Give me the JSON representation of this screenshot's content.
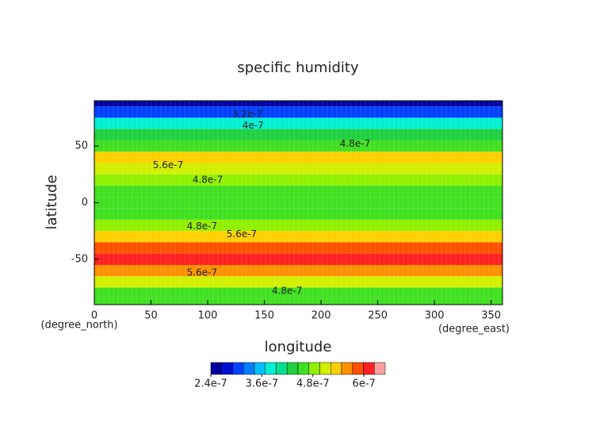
{
  "chart_data": {
    "type": "contour",
    "title": "specific humidity",
    "xlabel": "longitude",
    "ylabel": "latitude",
    "x_unit": "(degree_east)",
    "y_unit": "(degree_north)",
    "xlim": [
      0,
      360
    ],
    "ylim": [
      -90,
      90
    ],
    "xticks": [
      0,
      50,
      100,
      150,
      200,
      250,
      300,
      350
    ],
    "yticks": [
      -50,
      0,
      50
    ],
    "grid": true,
    "lat": [
      90,
      80,
      70,
      60,
      50,
      40,
      30,
      20,
      10,
      0,
      -10,
      -20,
      -30,
      -40,
      -50,
      -60,
      -70,
      -80,
      -90
    ],
    "values": [
      2.6e-07,
      3e-07,
      3.7e-07,
      4.2e-07,
      4.7e-07,
      5.3e-07,
      5.2e-07,
      4.8e-07,
      4.6e-07,
      4.5e-07,
      4.5e-07,
      4.8e-07,
      5.4e-07,
      5.9e-07,
      6e-07,
      5.7e-07,
      5e-07,
      4.6e-07,
      4.7e-07
    ],
    "clim": [
      2.4e-07,
      6.5e-07
    ],
    "colors": [
      "#0000a0",
      "#0010d0",
      "#0040ff",
      "#0080ff",
      "#00c0ff",
      "#00f0d0",
      "#00e090",
      "#20d040",
      "#40e020",
      "#90f000",
      "#d0f000",
      "#ffd000",
      "#ff9000",
      "#ff5000",
      "#ff2020",
      "#ffa0a0"
    ],
    "cticks": [
      2.4e-07,
      3.6e-07,
      4.8e-07,
      6e-07
    ],
    "contour_labels": [
      {
        "value": 3.2e-07,
        "x": 135,
        "y": 78
      },
      {
        "value": 4e-07,
        "x": 140,
        "y": 68
      },
      {
        "value": 4.8e-07,
        "x": 230,
        "y": 52
      },
      {
        "value": 5.6e-07,
        "x": 65,
        "y": 33
      },
      {
        "value": 4.8e-07,
        "x": 100,
        "y": 20
      },
      {
        "value": 4.8e-07,
        "x": 95,
        "y": -21
      },
      {
        "value": 5.6e-07,
        "x": 130,
        "y": -28
      },
      {
        "value": 5.6e-07,
        "x": 95,
        "y": -62
      },
      {
        "value": 4.8e-07,
        "x": 170,
        "y": -78
      }
    ]
  }
}
